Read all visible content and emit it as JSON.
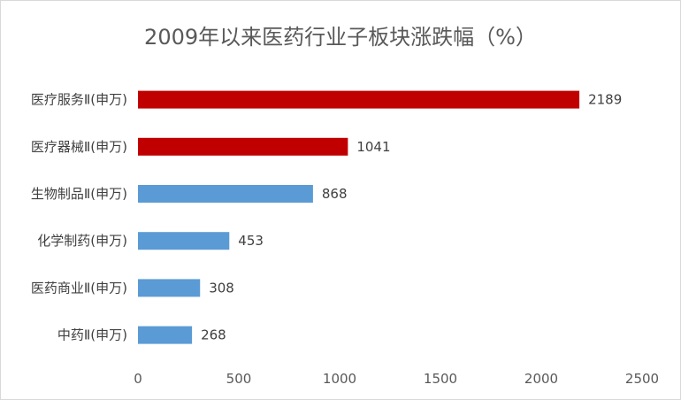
{
  "chart_data": {
    "type": "bar",
    "orientation": "horizontal",
    "title": "2009年以来医药行业子板块涨跌幅（%）",
    "categories": [
      "医疗服务Ⅱ(申万)",
      "医疗器械Ⅱ(申万)",
      "生物制品Ⅱ(申万)",
      "化学制药(申万)",
      "医药商业Ⅱ(申万)",
      "中药Ⅱ(申万)"
    ],
    "values": [
      2189,
      1041,
      868,
      453,
      308,
      268
    ],
    "bar_colors": [
      "#c00000",
      "#c00000",
      "#5b9bd5",
      "#5b9bd5",
      "#5b9bd5",
      "#5b9bd5"
    ],
    "xlim": [
      0,
      2500
    ],
    "xticks": [
      0,
      500,
      1000,
      1500,
      2000,
      2500
    ],
    "grid": false,
    "data_labels": true
  }
}
